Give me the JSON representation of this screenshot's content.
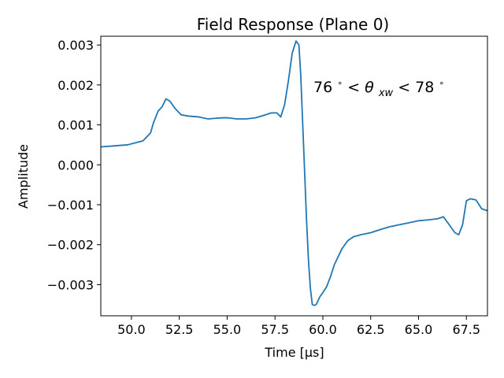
{
  "chart_data": {
    "type": "line",
    "title": "Field Response (Plane 0)",
    "xlabel": "Time [μs]",
    "ylabel": "Amplitude",
    "xlim": [
      48.4,
      68.6
    ],
    "ylim": [
      -0.00378,
      0.00322
    ],
    "xticks": [
      50.0,
      52.5,
      55.0,
      57.5,
      60.0,
      62.5,
      65.0,
      67.5
    ],
    "xtick_labels": [
      "50.0",
      "52.5",
      "55.0",
      "57.5",
      "60.0",
      "62.5",
      "65.0",
      "67.5"
    ],
    "yticks": [
      -0.003,
      -0.002,
      -0.001,
      0.0,
      0.001,
      0.002,
      0.003
    ],
    "ytick_labels": [
      "−0.003",
      "−0.002",
      "−0.001",
      "0.000",
      "0.001",
      "0.002",
      "0.003"
    ],
    "grid": false,
    "annotation": {
      "text_prefix": "76",
      "text_mid": " < ",
      "theta": "θ",
      "subscript": "xw",
      "text_end": " < 78",
      "degree": "∘"
    },
    "series": [
      {
        "color": "#1f77b4",
        "x": [
          48.4,
          49.0,
          49.5,
          49.8,
          50.2,
          50.6,
          51.0,
          51.15,
          51.4,
          51.6,
          51.8,
          52.0,
          52.3,
          52.6,
          53.0,
          53.5,
          54.0,
          54.5,
          55.0,
          55.5,
          56.0,
          56.5,
          57.0,
          57.3,
          57.6,
          57.8,
          58.0,
          58.2,
          58.4,
          58.6,
          58.75,
          58.85,
          58.95,
          59.05,
          59.15,
          59.25,
          59.35,
          59.45,
          59.55,
          59.65,
          59.75,
          59.85,
          60.0,
          60.2,
          60.4,
          60.6,
          60.8,
          61.0,
          61.3,
          61.6,
          62.0,
          62.5,
          63.0,
          63.5,
          64.0,
          64.5,
          65.0,
          65.5,
          66.0,
          66.3,
          66.6,
          66.9,
          67.1,
          67.3,
          67.5,
          67.7,
          68.0,
          68.3,
          68.6
        ],
        "y": [
          0.00045,
          0.00047,
          0.00049,
          0.0005,
          0.00055,
          0.0006,
          0.0008,
          0.00105,
          0.00135,
          0.00145,
          0.00165,
          0.0016,
          0.0014,
          0.00125,
          0.00122,
          0.0012,
          0.00115,
          0.00117,
          0.00118,
          0.00115,
          0.00115,
          0.00118,
          0.00125,
          0.0013,
          0.0013,
          0.0012,
          0.0015,
          0.0021,
          0.0028,
          0.0031,
          0.003,
          0.0022,
          0.001,
          -0.0002,
          -0.0014,
          -0.0024,
          -0.0031,
          -0.0035,
          -0.00352,
          -0.0035,
          -0.0034,
          -0.0033,
          -0.0032,
          -0.00305,
          -0.0028,
          -0.0025,
          -0.0023,
          -0.0021,
          -0.0019,
          -0.0018,
          -0.00175,
          -0.0017,
          -0.00162,
          -0.00155,
          -0.0015,
          -0.00145,
          -0.0014,
          -0.00138,
          -0.00135,
          -0.0013,
          -0.0015,
          -0.0017,
          -0.00175,
          -0.0015,
          -0.0009,
          -0.00085,
          -0.00088,
          -0.0011,
          -0.00115
        ]
      }
    ]
  }
}
